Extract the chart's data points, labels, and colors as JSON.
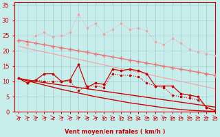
{
  "x": [
    0,
    1,
    2,
    3,
    4,
    5,
    6,
    7,
    8,
    9,
    10,
    11,
    12,
    13,
    14,
    15,
    16,
    17,
    18,
    19,
    20,
    21,
    22,
    23
  ],
  "line_salmon_upper_smooth": [
    23.5,
    23.0,
    22.5,
    22.0,
    21.5,
    21.0,
    20.5,
    20.0,
    19.5,
    19.0,
    18.5,
    18.0,
    17.5,
    17.0,
    16.5,
    16.0,
    15.5,
    15.0,
    14.5,
    14.0,
    13.5,
    13.0,
    12.5,
    12.0
  ],
  "line_salmon_lower_smooth": [
    21.5,
    20.8,
    20.2,
    19.6,
    19.0,
    18.4,
    17.8,
    17.2,
    16.6,
    16.0,
    15.4,
    14.8,
    14.2,
    13.6,
    13.0,
    12.4,
    11.8,
    11.2,
    10.6,
    10.0,
    9.4,
    8.8,
    8.2,
    7.6
  ],
  "line_salmon_jagged": [
    23.5,
    22.0,
    25.0,
    26.0,
    24.5,
    25.0,
    26.0,
    32.0,
    27.5,
    29.0,
    25.5,
    27.0,
    29.0,
    27.0,
    27.5,
    26.5,
    23.0,
    22.0,
    24.0,
    22.5,
    20.5,
    19.5,
    19.0,
    18.5
  ],
  "line_red_main_jagged": [
    11.0,
    9.5,
    10.5,
    12.5,
    12.5,
    10.0,
    10.5,
    15.5,
    8.0,
    9.5,
    9.0,
    14.0,
    13.5,
    14.0,
    13.5,
    12.5,
    8.5,
    8.5,
    8.5,
    6.0,
    5.5,
    5.0,
    1.5,
    0.5
  ],
  "line_red_secondary_jagged": [
    11.0,
    9.5,
    10.5,
    10.0,
    10.0,
    10.0,
    10.0,
    7.0,
    8.5,
    8.5,
    8.0,
    12.5,
    12.0,
    12.0,
    11.5,
    9.5,
    8.5,
    8.0,
    5.5,
    5.0,
    4.5,
    4.0,
    1.5,
    0.5
  ],
  "line_red_smooth_upper": [
    11.0,
    10.5,
    10.0,
    9.6,
    9.2,
    8.8,
    8.4,
    8.0,
    7.6,
    7.2,
    6.8,
    6.4,
    6.0,
    5.6,
    5.2,
    4.8,
    4.4,
    4.0,
    3.6,
    3.2,
    2.8,
    2.4,
    2.0,
    1.6
  ],
  "line_red_smooth_lower": [
    11.0,
    10.2,
    9.5,
    8.8,
    8.1,
    7.4,
    6.8,
    6.2,
    5.6,
    5.0,
    4.5,
    4.0,
    3.5,
    3.0,
    2.6,
    2.2,
    1.8,
    1.4,
    1.1,
    0.8,
    0.6,
    0.4,
    0.3,
    0.2
  ],
  "bg_color": "#c8eeec",
  "grid_color": "#a0cccc",
  "color_salmon_light": "#f5a0a0",
  "color_salmon": "#e87878",
  "color_red": "#cc0000",
  "xlabel": "Vent moyen/en rafales ( km/h )",
  "ylim": [
    0,
    36
  ],
  "xlim": [
    -0.5,
    23
  ],
  "yticks": [
    0,
    5,
    10,
    15,
    20,
    25,
    30,
    35
  ],
  "xticks": [
    0,
    1,
    2,
    3,
    4,
    5,
    6,
    7,
    8,
    9,
    10,
    11,
    12,
    13,
    14,
    15,
    16,
    17,
    18,
    19,
    20,
    21,
    22,
    23
  ]
}
